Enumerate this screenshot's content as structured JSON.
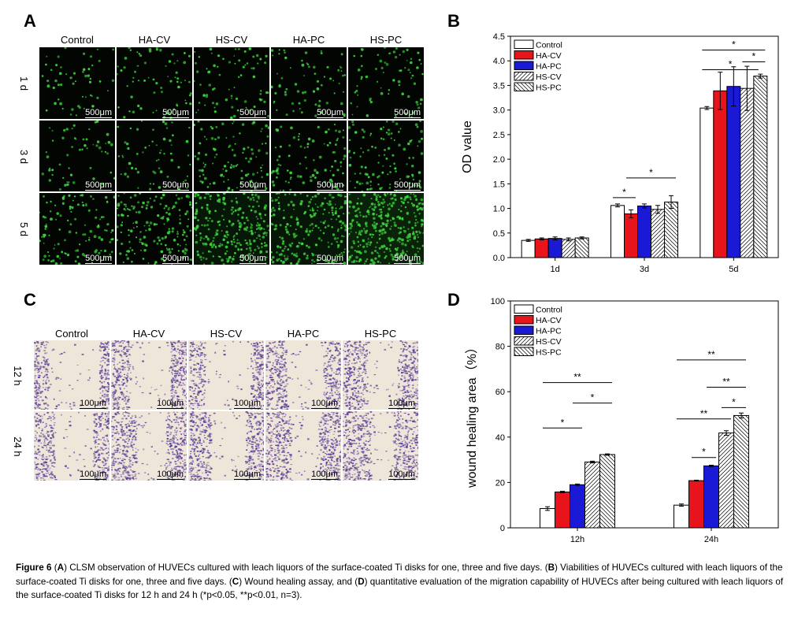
{
  "panels": {
    "a": {
      "label": "A",
      "columns": [
        "Control",
        "HA-CV",
        "HS-CV",
        "HA-PC",
        "HS-PC"
      ],
      "rows": [
        "1 d",
        "3 d",
        "5 d"
      ],
      "scale_label": "500μm",
      "cell_color": "#3cd23c"
    },
    "c": {
      "label": "C",
      "columns": [
        "Control",
        "HA-CV",
        "HS-CV",
        "HA-PC",
        "HS-PC"
      ],
      "rows": [
        "12 h",
        "24 h"
      ],
      "scale_label": "100μm",
      "cell_color": "#5a3e96"
    },
    "b": {
      "label": "B"
    },
    "d": {
      "label": "D"
    }
  },
  "chart_data": [
    {
      "panel": "B",
      "type": "bar",
      "categories": [
        "1d",
        "3d",
        "5d"
      ],
      "ylabel": "OD value",
      "xlabel": "",
      "ylim": [
        0,
        4.5
      ],
      "yticks": [
        "0.0",
        "0.5",
        "1.0",
        "1.5",
        "2.0",
        "2.5",
        "3.0",
        "3.5",
        "4.0",
        "4.5"
      ],
      "legend_position": "top-left",
      "series": [
        {
          "name": "Control",
          "pattern": "white",
          "values": [
            0.35,
            1.06,
            3.04
          ],
          "errors": [
            0.02,
            0.03,
            0.03
          ]
        },
        {
          "name": "HA-CV",
          "pattern": "red",
          "values": [
            0.38,
            0.89,
            3.39
          ],
          "errors": [
            0.02,
            0.08,
            0.38
          ]
        },
        {
          "name": "HA-PC",
          "pattern": "blue",
          "values": [
            0.39,
            1.05,
            3.48
          ],
          "errors": [
            0.03,
            0.04,
            0.4
          ]
        },
        {
          "name": "HS-CV",
          "pattern": "forward-hatch",
          "values": [
            0.37,
            0.98,
            3.44
          ],
          "errors": [
            0.03,
            0.08,
            0.45
          ]
        },
        {
          "name": "HS-PC",
          "pattern": "back-hatch",
          "values": [
            0.4,
            1.13,
            3.69
          ],
          "errors": [
            0.02,
            0.13,
            0.04
          ]
        }
      ],
      "annotations": [
        {
          "text": "*",
          "group": 1,
          "from": 0,
          "to": 1,
          "y": 1.22
        },
        {
          "text": "*",
          "group": 1,
          "from": 1,
          "to": 4,
          "y": 1.62
        },
        {
          "text": "*",
          "group": 2,
          "from": 0,
          "to": 4,
          "y": 4.22
        },
        {
          "text": "*",
          "group": 2,
          "from": 3,
          "to": 4,
          "y": 3.98
        },
        {
          "text": "*",
          "group": 2,
          "from": 0,
          "to": 3.5,
          "y": 3.82
        }
      ],
      "colors": {
        "red": "#e8141b",
        "blue": "#1919d6"
      }
    },
    {
      "panel": "D",
      "type": "bar",
      "categories": [
        "12h",
        "24h"
      ],
      "ylabel": "wound healing area（%）",
      "xlabel": "",
      "ylim": [
        0,
        100
      ],
      "yticks": [
        "0",
        "20",
        "40",
        "60",
        "80",
        "100"
      ],
      "legend_position": "top-left",
      "series": [
        {
          "name": "Control",
          "pattern": "white",
          "values": [
            8.5,
            10.0
          ],
          "errors": [
            0.8,
            0.5
          ]
        },
        {
          "name": "HA-CV",
          "pattern": "red",
          "values": [
            15.8,
            20.8
          ],
          "errors": [
            0.3,
            0.2
          ]
        },
        {
          "name": "HA-PC",
          "pattern": "blue",
          "values": [
            19.0,
            27.3
          ],
          "errors": [
            0.3,
            0.3
          ]
        },
        {
          "name": "HS-CV",
          "pattern": "forward-hatch",
          "values": [
            29.0,
            41.8
          ],
          "errors": [
            0.4,
            1.0
          ]
        },
        {
          "name": "HS-PC",
          "pattern": "back-hatch",
          "values": [
            32.3,
            49.5
          ],
          "errors": [
            0.3,
            1.1
          ]
        }
      ],
      "annotations": [
        {
          "text": "*",
          "group": 0,
          "from": 0,
          "to": 2,
          "y": 44
        },
        {
          "text": "*",
          "group": 0,
          "from": 2,
          "to": 4,
          "y": 55
        },
        {
          "text": "**",
          "group": 0,
          "from": 0,
          "to": 4,
          "y": 64
        },
        {
          "text": "*",
          "group": 1,
          "from": 1,
          "to": 2,
          "y": 31
        },
        {
          "text": "**",
          "group": 1,
          "from": 0,
          "to": 3,
          "y": 48
        },
        {
          "text": "*",
          "group": 1,
          "from": 3,
          "to": 4,
          "y": 53
        },
        {
          "text": "**",
          "group": 1,
          "from": 2,
          "to": 4,
          "y": 62
        },
        {
          "text": "**",
          "group": 1,
          "from": 0,
          "to": 4,
          "y": 74
        }
      ],
      "colors": {
        "red": "#e8141b",
        "blue": "#1919d6"
      }
    }
  ],
  "caption": {
    "figure_label": "Figure 6",
    "segments": [
      {
        "bold": false,
        "text": " ("
      },
      {
        "bold": true,
        "text": "A"
      },
      {
        "bold": false,
        "text": ") CLSM observation of HUVECs cultured with leach liquors of the surface-coated Ti disks for one, three and five days. ("
      },
      {
        "bold": true,
        "text": "B"
      },
      {
        "bold": false,
        "text": ") Viabilities of HUVECs cultured with leach liquors of the surface-coated Ti disks for one, three and five days. ("
      },
      {
        "bold": true,
        "text": "C"
      },
      {
        "bold": false,
        "text": ") Wound healing assay, and ("
      },
      {
        "bold": true,
        "text": "D"
      },
      {
        "bold": false,
        "text": ") quantitative evaluation of the migration capability of HUVECs after being cultured with leach liquors of the surface-coated Ti disks for 12 h and 24 h (*p<0.05, **p<0.01, n=3)."
      }
    ]
  }
}
